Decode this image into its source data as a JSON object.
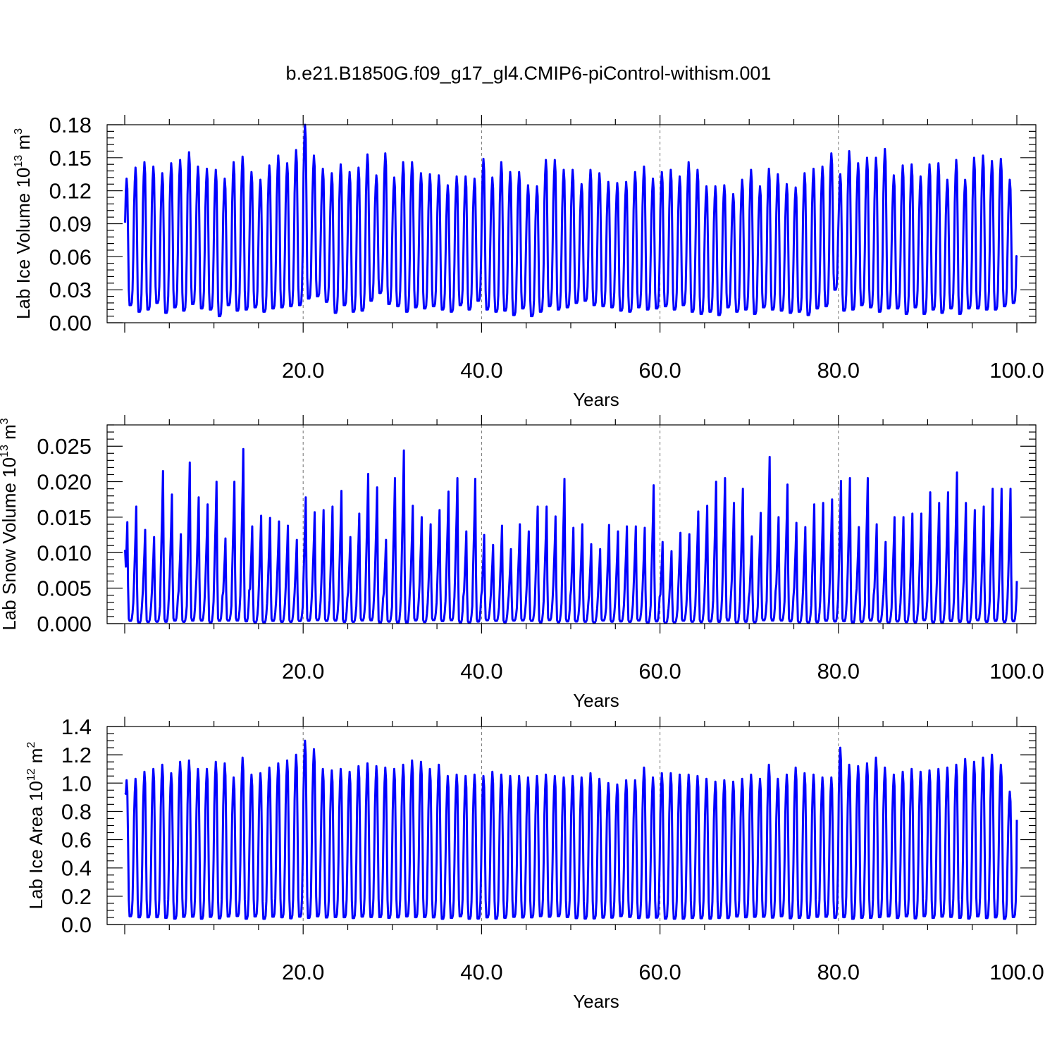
{
  "chart_data": [
    {
      "type": "line",
      "title": "b.e21.B1850G.f09_g17_gl4.CMIP6-piControl-withism.001",
      "xlabel": "Years",
      "ylabel": {
        "prefix": "Lab Ice Volume 10",
        "exponent": "13",
        "unit": " m",
        "unit_exponent": "3"
      },
      "xlim": [
        0.0,
        100.0
      ],
      "ylim": [
        0.0,
        0.18
      ],
      "xticks": [
        "20.0",
        "40.0",
        "60.0",
        "80.0",
        "100.0"
      ],
      "yticks": [
        "0.00",
        "0.03",
        "0.06",
        "0.09",
        "0.12",
        "0.15",
        "0.18"
      ],
      "grid": "dashed vertical lines at 20, 40, 60, 80",
      "series": [
        {
          "color": "#0000ff",
          "annual_peaks": [
            0.131,
            0.141,
            0.146,
            0.142,
            0.136,
            0.145,
            0.148,
            0.155,
            0.142,
            0.14,
            0.139,
            0.131,
            0.146,
            0.151,
            0.137,
            0.13,
            0.143,
            0.152,
            0.145,
            0.157,
            0.18,
            0.152,
            0.14,
            0.136,
            0.144,
            0.137,
            0.141,
            0.153,
            0.134,
            0.154,
            0.132,
            0.146,
            0.146,
            0.136,
            0.135,
            0.134,
            0.125,
            0.133,
            0.133,
            0.131,
            0.149,
            0.132,
            0.146,
            0.137,
            0.137,
            0.125,
            0.124,
            0.148,
            0.148,
            0.139,
            0.139,
            0.126,
            0.139,
            0.136,
            0.128,
            0.127,
            0.128,
            0.137,
            0.142,
            0.131,
            0.137,
            0.139,
            0.133,
            0.146,
            0.139,
            0.124,
            0.124,
            0.125,
            0.117,
            0.13,
            0.139,
            0.124,
            0.14,
            0.135,
            0.126,
            0.123,
            0.136,
            0.14,
            0.142,
            0.154,
            0.135,
            0.156,
            0.145,
            0.15,
            0.15,
            0.158,
            0.134,
            0.143,
            0.144,
            0.133,
            0.144,
            0.145,
            0.13,
            0.148,
            0.13,
            0.15,
            0.152,
            0.147,
            0.149,
            0.13
          ],
          "annual_minima": [
            0.016,
            0.01,
            0.012,
            0.018,
            0.009,
            0.014,
            0.011,
            0.017,
            0.013,
            0.012,
            0.006,
            0.016,
            0.011,
            0.012,
            0.014,
            0.01,
            0.013,
            0.014,
            0.015,
            0.016,
            0.022,
            0.024,
            0.019,
            0.009,
            0.016,
            0.01,
            0.011,
            0.02,
            0.027,
            0.017,
            0.015,
            0.01,
            0.014,
            0.013,
            0.015,
            0.012,
            0.01,
            0.016,
            0.012,
            0.02,
            0.012,
            0.01,
            0.011,
            0.007,
            0.013,
            0.006,
            0.01,
            0.015,
            0.012,
            0.014,
            0.018,
            0.02,
            0.016,
            0.015,
            0.014,
            0.011,
            0.01,
            0.014,
            0.012,
            0.013,
            0.015,
            0.012,
            0.016,
            0.01,
            0.008,
            0.01,
            0.007,
            0.014,
            0.01,
            0.012,
            0.008,
            0.014,
            0.012,
            0.011,
            0.009,
            0.01,
            0.007,
            0.013,
            0.015,
            0.03,
            0.011,
            0.012,
            0.016,
            0.014,
            0.01,
            0.013,
            0.013,
            0.008,
            0.014,
            0.008,
            0.012,
            0.009,
            0.013,
            0.008,
            0.013,
            0.013,
            0.012,
            0.012,
            0.015,
            0.018
          ],
          "start_value": 0.091,
          "end_value": 0.06
        }
      ]
    },
    {
      "type": "line",
      "xlabel": "Years",
      "ylabel": {
        "prefix": "Lab Snow Volume 10",
        "exponent": "13",
        "unit": " m",
        "unit_exponent": "3"
      },
      "xlim": [
        0.0,
        100.0
      ],
      "ylim": [
        0.0,
        0.028
      ],
      "xticks": [
        "20.0",
        "40.0",
        "60.0",
        "80.0",
        "100.0"
      ],
      "yticks": [
        "0.000",
        "0.005",
        "0.010",
        "0.015",
        "0.020",
        "0.025"
      ],
      "grid": "dashed vertical lines at 20, 40, 60, 80",
      "series": [
        {
          "color": "#0000ff",
          "annual_peaks": [
            0.0143,
            0.0165,
            0.0132,
            0.0122,
            0.0215,
            0.0182,
            0.0126,
            0.0227,
            0.0178,
            0.0168,
            0.02,
            0.012,
            0.02,
            0.0246,
            0.0137,
            0.0152,
            0.0149,
            0.0144,
            0.0138,
            0.0118,
            0.0178,
            0.0157,
            0.016,
            0.0165,
            0.0187,
            0.0122,
            0.0155,
            0.0211,
            0.0192,
            0.0118,
            0.0205,
            0.0244,
            0.0166,
            0.015,
            0.014,
            0.016,
            0.0186,
            0.0205,
            0.013,
            0.0204,
            0.0125,
            0.0111,
            0.0138,
            0.0105,
            0.014,
            0.013,
            0.0165,
            0.0165,
            0.0151,
            0.0204,
            0.0135,
            0.014,
            0.0112,
            0.0105,
            0.0139,
            0.013,
            0.0137,
            0.0137,
            0.0135,
            0.0195,
            0.0115,
            0.0102,
            0.0128,
            0.0126,
            0.0158,
            0.0166,
            0.02,
            0.0205,
            0.017,
            0.019,
            0.0123,
            0.0156,
            0.0235,
            0.015,
            0.0196,
            0.0142,
            0.0136,
            0.0168,
            0.017,
            0.0175,
            0.0201,
            0.0205,
            0.0136,
            0.0205,
            0.014,
            0.0115,
            0.015,
            0.015,
            0.0155,
            0.0155,
            0.0185,
            0.017,
            0.0185,
            0.0213,
            0.017,
            0.016,
            0.0165,
            0.019,
            0.019,
            0.019
          ],
          "start_value": 0.0104,
          "end_value": 0.006
        }
      ]
    },
    {
      "type": "line",
      "xlabel": "Years",
      "ylabel": {
        "prefix": "Lab Ice Area 10",
        "exponent": "12",
        "unit": " m",
        "unit_exponent": "2"
      },
      "xlim": [
        0.0,
        100.0
      ],
      "ylim": [
        0.0,
        1.4
      ],
      "xticks": [
        "20.0",
        "40.0",
        "60.0",
        "80.0",
        "100.0"
      ],
      "yticks": [
        "0.0",
        "0.2",
        "0.4",
        "0.6",
        "0.8",
        "1.0",
        "1.2",
        "1.4"
      ],
      "grid": "dashed vertical lines at 20, 40, 60, 80",
      "series": [
        {
          "color": "#0000ff",
          "annual_peaks": [
            1.02,
            1.03,
            1.08,
            1.1,
            1.13,
            1.07,
            1.15,
            1.16,
            1.1,
            1.1,
            1.15,
            1.14,
            1.04,
            1.18,
            1.06,
            1.07,
            1.11,
            1.14,
            1.16,
            1.2,
            1.3,
            1.24,
            1.1,
            1.09,
            1.1,
            1.08,
            1.12,
            1.14,
            1.12,
            1.11,
            1.1,
            1.13,
            1.16,
            1.15,
            1.1,
            1.13,
            1.05,
            1.06,
            1.05,
            1.06,
            1.05,
            1.08,
            1.06,
            1.05,
            1.05,
            1.04,
            1.05,
            1.06,
            1.05,
            1.04,
            1.05,
            1.04,
            1.07,
            1.03,
            1.0,
            0.99,
            1.02,
            1.02,
            1.11,
            1.04,
            1.07,
            1.07,
            1.06,
            1.06,
            1.05,
            1.03,
            1.01,
            1.02,
            1.01,
            1.03,
            1.06,
            1.03,
            1.13,
            1.03,
            1.06,
            1.11,
            1.07,
            1.06,
            1.04,
            1.04,
            1.25,
            1.13,
            1.12,
            1.14,
            1.18,
            1.11,
            1.06,
            1.08,
            1.1,
            1.08,
            1.09,
            1.1,
            1.11,
            1.13,
            1.17,
            1.15,
            1.18,
            1.2,
            1.13,
            0.94
          ],
          "start_value": 0.93,
          "end_value": 0.74
        }
      ]
    }
  ]
}
